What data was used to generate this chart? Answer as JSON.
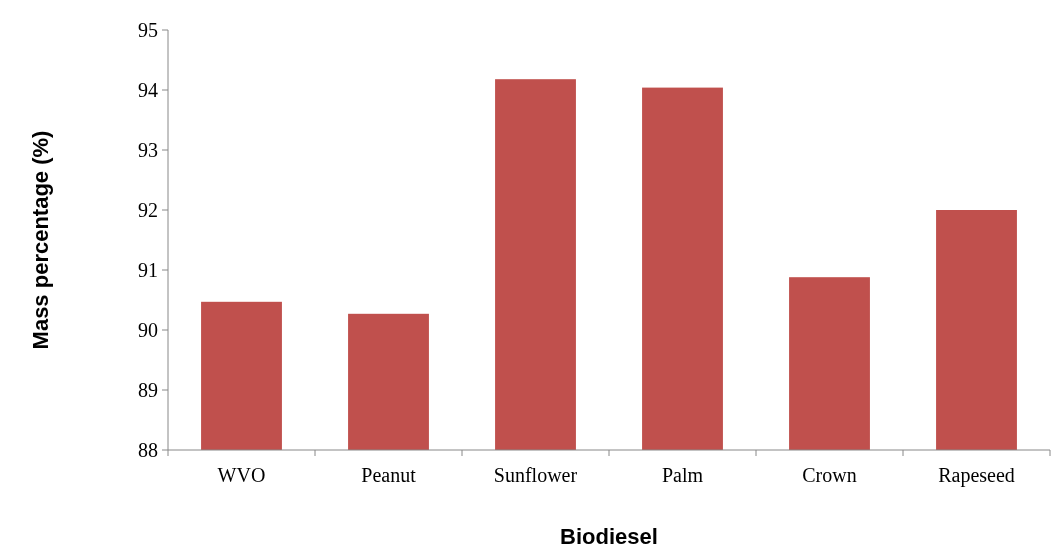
{
  "chart_data": {
    "type": "bar",
    "xlabel": "Biodiesel",
    "ylabel": "Mass percentage (%)",
    "categories": [
      "WVO",
      "Peanut",
      "Sunflower",
      "Palm",
      "Crown",
      "Rapeseed"
    ],
    "values": [
      90.47,
      90.27,
      94.18,
      94.04,
      90.88,
      92.0
    ],
    "color": "#c0504d",
    "ylim": [
      88,
      95
    ],
    "yticks": [
      88,
      89,
      90,
      91,
      92,
      93,
      94,
      95
    ]
  }
}
